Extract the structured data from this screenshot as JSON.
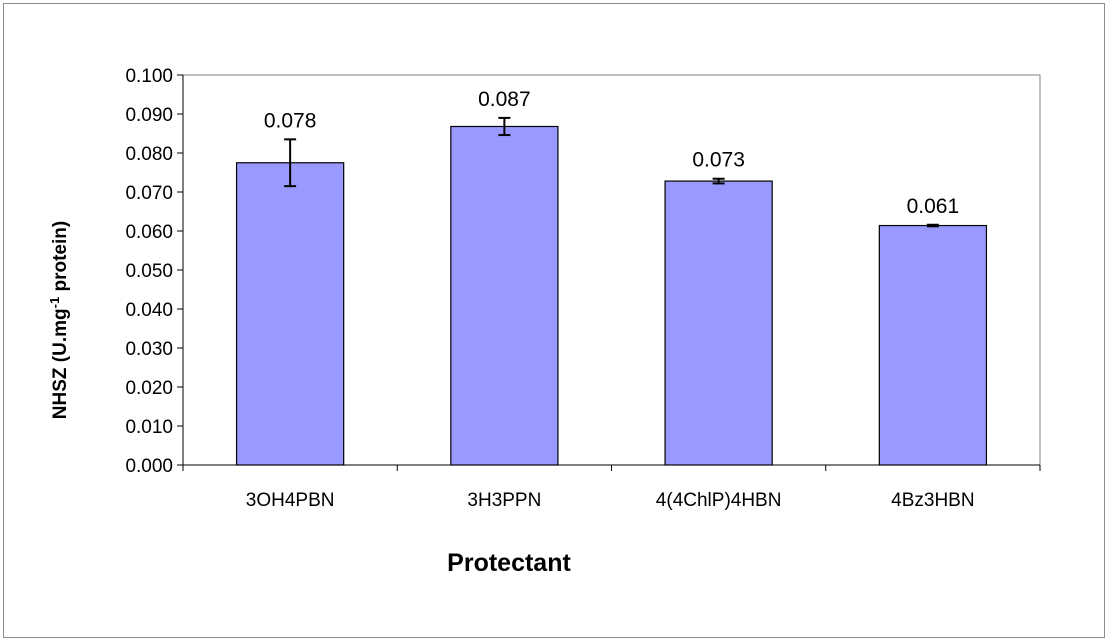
{
  "chart_data": {
    "type": "bar",
    "categories": [
      "3OH4PBN",
      "3H3PPN",
      "4(4ChlP)4HBN",
      "4Bz3HBN"
    ],
    "values": [
      0.0775,
      0.0868,
      0.0728,
      0.0614
    ],
    "errors": [
      0.006,
      0.0022,
      0.0006,
      0.0002
    ],
    "data_labels": [
      "0.078",
      "0.087",
      "0.073",
      "0.061"
    ],
    "xlabel": "Protectant",
    "ylabel": {
      "prefix": "NHSZ (U.mg",
      "superscript": "-1",
      "suffix": " protein)"
    },
    "ylim": [
      0,
      0.1
    ],
    "yticks": [
      0.0,
      0.01,
      0.02,
      0.03,
      0.04,
      0.05,
      0.06,
      0.07,
      0.08,
      0.09,
      0.1
    ],
    "ytick_labels": [
      "0.000",
      "0.010",
      "0.020",
      "0.030",
      "0.040",
      "0.050",
      "0.060",
      "0.070",
      "0.080",
      "0.090",
      "0.100"
    ],
    "grid": false,
    "legend": "none",
    "bar_color": "#9999ff",
    "bar_edge_color": "#000000"
  }
}
